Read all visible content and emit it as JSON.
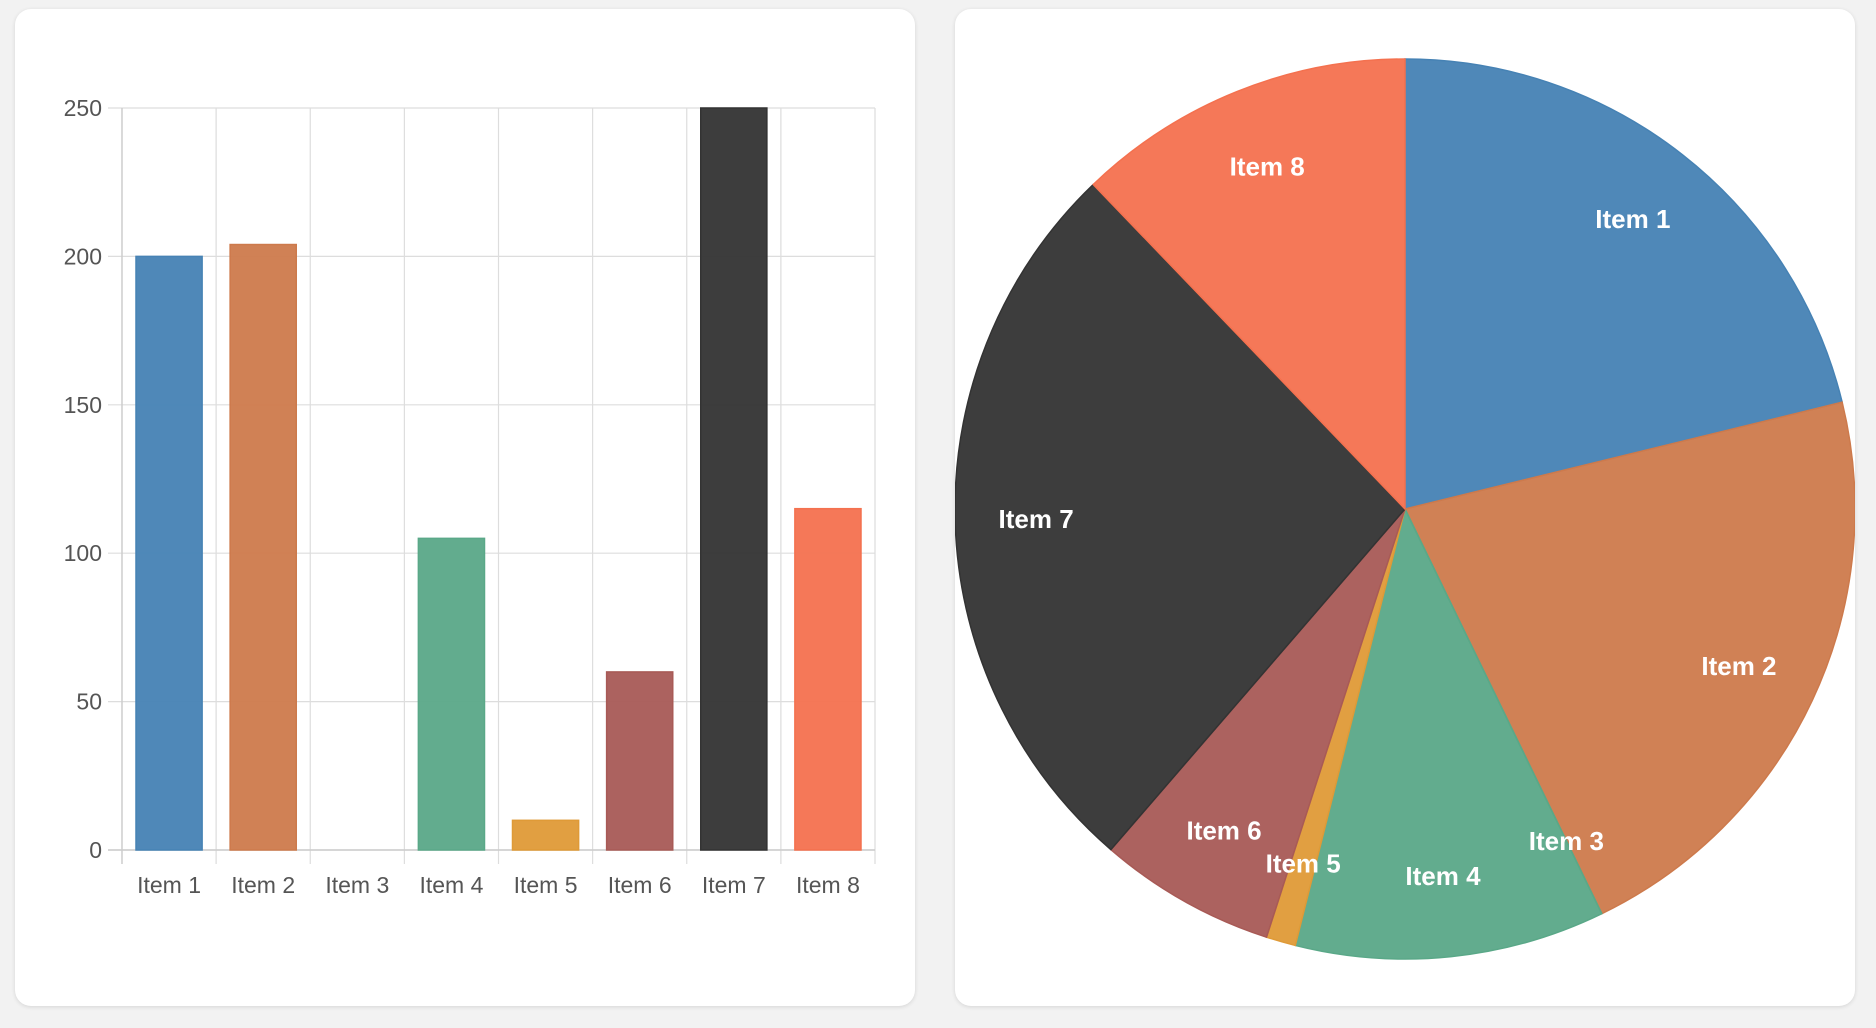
{
  "chart_data": [
    {
      "type": "bar",
      "categories": [
        "Item 1",
        "Item 2",
        "Item 3",
        "Item 4",
        "Item 5",
        "Item 6",
        "Item 7",
        "Item 8"
      ],
      "values": [
        200,
        204,
        0,
        105,
        10,
        60,
        250,
        115
      ],
      "ylim": [
        0,
        250
      ],
      "yticks": [
        "0",
        "50",
        "100",
        "150",
        "200",
        "250"
      ],
      "colors": [
        "#4682b4",
        "#cd7a4c",
        "#cfcfcf",
        "#5aa888",
        "#df9a37",
        "#a85a56",
        "#333333",
        "#f4714f"
      ],
      "grid": true,
      "title": "",
      "xlabel": "",
      "ylabel": ""
    },
    {
      "type": "pie",
      "categories": [
        "Item 1",
        "Item 2",
        "Item 3",
        "Item 4",
        "Item 5",
        "Item 6",
        "Item 7",
        "Item 8"
      ],
      "values": [
        200,
        204,
        0,
        105,
        10,
        60,
        250,
        115
      ],
      "colors": [
        "#4682b4",
        "#cd7a4c",
        "#cfcfcf",
        "#5aa888",
        "#df9a37",
        "#a85a56",
        "#333333",
        "#f4714f"
      ],
      "title": ""
    }
  ]
}
